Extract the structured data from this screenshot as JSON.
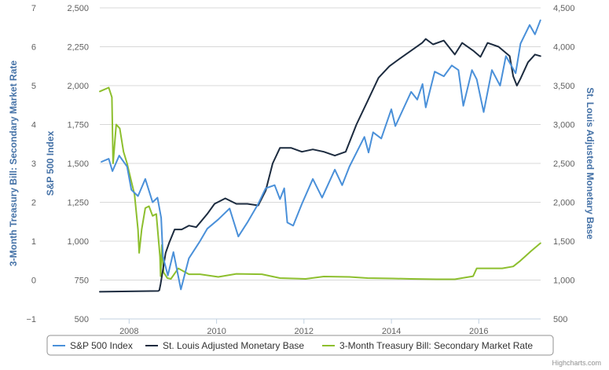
{
  "colors": {
    "sp500": "#4a90d9",
    "monetary_base": "#1c2b3f",
    "tbill": "#8dbf2e",
    "axis_title": "#4572A7",
    "grid": "#d8d8d8"
  },
  "credit": "Highcharts.com",
  "chart_data": {
    "type": "line",
    "title": "",
    "x_axis": {
      "type": "date",
      "range": [
        "2007-05-01",
        "2017-06-01"
      ],
      "tick_labels": [
        "2008",
        "2010",
        "2012",
        "2014",
        "2016"
      ],
      "ticks": [
        "2008-01-01",
        "2010-01-01",
        "2012-01-01",
        "2014-01-01",
        "2016-01-01"
      ]
    },
    "y_axes": [
      {
        "id": "tbill",
        "position": "left-outer",
        "title": "3-Month Treasury Bill: Secondary Market Rate",
        "range": [
          -1,
          7
        ],
        "tick_labels": [
          "−1",
          "0",
          "1",
          "2",
          "3",
          "4",
          "5",
          "6",
          "7"
        ],
        "ticks": [
          -1,
          0,
          1,
          2,
          3,
          4,
          5,
          6,
          7
        ]
      },
      {
        "id": "sp500",
        "position": "left-inner",
        "title": "S&P 500 Index",
        "range": [
          500,
          2500
        ],
        "tick_labels": [
          "500",
          "750",
          "1,000",
          "1,250",
          "1,500",
          "1,750",
          "2,000",
          "2,250",
          "2,500"
        ],
        "ticks": [
          500,
          750,
          1000,
          1250,
          1500,
          1750,
          2000,
          2250,
          2500
        ]
      },
      {
        "id": "monetary_base",
        "position": "right",
        "title": "St. Louis Adjusted Monetary Base",
        "range": [
          500,
          4500
        ],
        "tick_labels": [
          "500",
          "1,000",
          "1,500",
          "2,000",
          "2,500",
          "3,000",
          "3,500",
          "4,000",
          "4,500"
        ],
        "ticks": [
          500,
          1000,
          1500,
          2000,
          2500,
          3000,
          3500,
          4000,
          4500
        ]
      }
    ],
    "grid": true,
    "legend_position": "bottom-center",
    "series": [
      {
        "name": "S&P 500 Index",
        "axis": "sp500",
        "points": [
          [
            "2007-05-15",
            1510
          ],
          [
            "2007-07-15",
            1530
          ],
          [
            "2007-08-15",
            1450
          ],
          [
            "2007-10-10",
            1550
          ],
          [
            "2007-12-15",
            1480
          ],
          [
            "2008-01-20",
            1330
          ],
          [
            "2008-03-15",
            1290
          ],
          [
            "2008-05-15",
            1400
          ],
          [
            "2008-07-15",
            1250
          ],
          [
            "2008-08-25",
            1280
          ],
          [
            "2008-09-25",
            1150
          ],
          [
            "2008-10-10",
            900
          ],
          [
            "2008-11-20",
            780
          ],
          [
            "2009-01-05",
            930
          ],
          [
            "2009-03-09",
            690
          ],
          [
            "2009-05-15",
            890
          ],
          [
            "2009-08-15",
            1000
          ],
          [
            "2009-10-15",
            1080
          ],
          [
            "2010-01-15",
            1140
          ],
          [
            "2010-04-20",
            1210
          ],
          [
            "2010-07-02",
            1030
          ],
          [
            "2010-09-15",
            1120
          ],
          [
            "2010-12-15",
            1240
          ],
          [
            "2011-02-15",
            1340
          ],
          [
            "2011-05-01",
            1360
          ],
          [
            "2011-06-15",
            1270
          ],
          [
            "2011-07-20",
            1340
          ],
          [
            "2011-08-15",
            1120
          ],
          [
            "2011-10-03",
            1100
          ],
          [
            "2011-12-15",
            1240
          ],
          [
            "2012-03-15",
            1400
          ],
          [
            "2012-06-01",
            1280
          ],
          [
            "2012-09-15",
            1460
          ],
          [
            "2012-11-15",
            1360
          ],
          [
            "2013-01-15",
            1480
          ],
          [
            "2013-05-20",
            1670
          ],
          [
            "2013-06-24",
            1570
          ],
          [
            "2013-08-01",
            1700
          ],
          [
            "2013-10-08",
            1660
          ],
          [
            "2013-12-31",
            1848
          ],
          [
            "2014-02-03",
            1740
          ],
          [
            "2014-06-15",
            1960
          ],
          [
            "2014-08-05",
            1910
          ],
          [
            "2014-09-18",
            2010
          ],
          [
            "2014-10-15",
            1860
          ],
          [
            "2014-12-29",
            2090
          ],
          [
            "2015-03-15",
            2060
          ],
          [
            "2015-05-20",
            2130
          ],
          [
            "2015-07-15",
            2100
          ],
          [
            "2015-08-25",
            1870
          ],
          [
            "2015-11-05",
            2100
          ],
          [
            "2015-12-15",
            2040
          ],
          [
            "2016-02-11",
            1830
          ],
          [
            "2016-04-20",
            2100
          ],
          [
            "2016-06-27",
            2000
          ],
          [
            "2016-08-15",
            2190
          ],
          [
            "2016-11-04",
            2080
          ],
          [
            "2016-12-15",
            2270
          ],
          [
            "2017-03-01",
            2390
          ],
          [
            "2017-04-15",
            2330
          ],
          [
            "2017-05-30",
            2420
          ]
        ]
      },
      {
        "name": "St. Louis Adjusted Monetary Base",
        "axis": "monetary_base",
        "points": [
          [
            "2007-05-01",
            850
          ],
          [
            "2007-12-31",
            855
          ],
          [
            "2008-08-31",
            860
          ],
          [
            "2008-09-10",
            870
          ],
          [
            "2008-09-20",
            950
          ],
          [
            "2008-10-01",
            1050
          ],
          [
            "2008-11-01",
            1350
          ],
          [
            "2008-12-01",
            1480
          ],
          [
            "2009-01-15",
            1650
          ],
          [
            "2009-03-15",
            1650
          ],
          [
            "2009-05-15",
            1700
          ],
          [
            "2009-07-15",
            1680
          ],
          [
            "2009-10-15",
            1850
          ],
          [
            "2009-12-15",
            1980
          ],
          [
            "2010-03-15",
            2050
          ],
          [
            "2010-06-15",
            1980
          ],
          [
            "2010-09-15",
            1980
          ],
          [
            "2010-12-15",
            1960
          ],
          [
            "2011-02-15",
            2150
          ],
          [
            "2011-04-15",
            2500
          ],
          [
            "2011-06-15",
            2700
          ],
          [
            "2011-09-15",
            2700
          ],
          [
            "2011-12-15",
            2650
          ],
          [
            "2012-03-15",
            2680
          ],
          [
            "2012-06-15",
            2650
          ],
          [
            "2012-09-15",
            2600
          ],
          [
            "2012-12-15",
            2650
          ],
          [
            "2013-03-15",
            3000
          ],
          [
            "2013-06-15",
            3300
          ],
          [
            "2013-09-15",
            3600
          ],
          [
            "2013-12-15",
            3750
          ],
          [
            "2014-03-15",
            3850
          ],
          [
            "2014-06-15",
            3950
          ],
          [
            "2014-09-15",
            4050
          ],
          [
            "2014-10-15",
            4100
          ],
          [
            "2014-12-15",
            4030
          ],
          [
            "2015-03-15",
            4080
          ],
          [
            "2015-06-15",
            3900
          ],
          [
            "2015-08-15",
            4050
          ],
          [
            "2015-11-15",
            3950
          ],
          [
            "2016-01-15",
            3870
          ],
          [
            "2016-03-15",
            4050
          ],
          [
            "2016-06-15",
            4000
          ],
          [
            "2016-09-15",
            3880
          ],
          [
            "2016-10-15",
            3620
          ],
          [
            "2016-11-15",
            3500
          ],
          [
            "2016-12-15",
            3590
          ],
          [
            "2017-02-15",
            3800
          ],
          [
            "2017-04-15",
            3900
          ],
          [
            "2017-05-31",
            3880
          ]
        ]
      },
      {
        "name": "3-Month Treasury Bill: Secondary Market Rate",
        "axis": "tbill",
        "points": [
          [
            "2007-05-01",
            4.85
          ],
          [
            "2007-07-15",
            4.95
          ],
          [
            "2007-08-10",
            4.7
          ],
          [
            "2007-08-20",
            3.0
          ],
          [
            "2007-09-15",
            4.0
          ],
          [
            "2007-10-15",
            3.9
          ],
          [
            "2007-11-15",
            3.3
          ],
          [
            "2007-12-15",
            3.0
          ],
          [
            "2008-01-15",
            2.6
          ],
          [
            "2008-02-15",
            2.2
          ],
          [
            "2008-03-15",
            1.3
          ],
          [
            "2008-03-25",
            0.7
          ],
          [
            "2008-04-15",
            1.3
          ],
          [
            "2008-05-15",
            1.85
          ],
          [
            "2008-06-15",
            1.9
          ],
          [
            "2008-07-15",
            1.65
          ],
          [
            "2008-08-15",
            1.7
          ],
          [
            "2008-09-15",
            0.6
          ],
          [
            "2008-09-20",
            0.1
          ],
          [
            "2008-10-01",
            0.9
          ],
          [
            "2008-10-15",
            0.2
          ],
          [
            "2008-11-15",
            0.05
          ],
          [
            "2008-12-15",
            0.03
          ],
          [
            "2009-02-15",
            0.3
          ],
          [
            "2009-05-15",
            0.15
          ],
          [
            "2009-08-15",
            0.15
          ],
          [
            "2010-01-15",
            0.08
          ],
          [
            "2010-06-15",
            0.16
          ],
          [
            "2011-01-15",
            0.15
          ],
          [
            "2011-06-15",
            0.05
          ],
          [
            "2012-01-15",
            0.03
          ],
          [
            "2012-06-15",
            0.09
          ],
          [
            "2013-01-15",
            0.08
          ],
          [
            "2013-06-15",
            0.05
          ],
          [
            "2014-01-15",
            0.04
          ],
          [
            "2014-06-15",
            0.03
          ],
          [
            "2015-01-15",
            0.02
          ],
          [
            "2015-06-15",
            0.02
          ],
          [
            "2015-11-15",
            0.1
          ],
          [
            "2015-12-15",
            0.3
          ],
          [
            "2016-03-15",
            0.3
          ],
          [
            "2016-07-15",
            0.3
          ],
          [
            "2016-10-15",
            0.35
          ],
          [
            "2016-12-15",
            0.5
          ],
          [
            "2017-03-15",
            0.75
          ],
          [
            "2017-05-31",
            0.95
          ]
        ]
      }
    ]
  }
}
